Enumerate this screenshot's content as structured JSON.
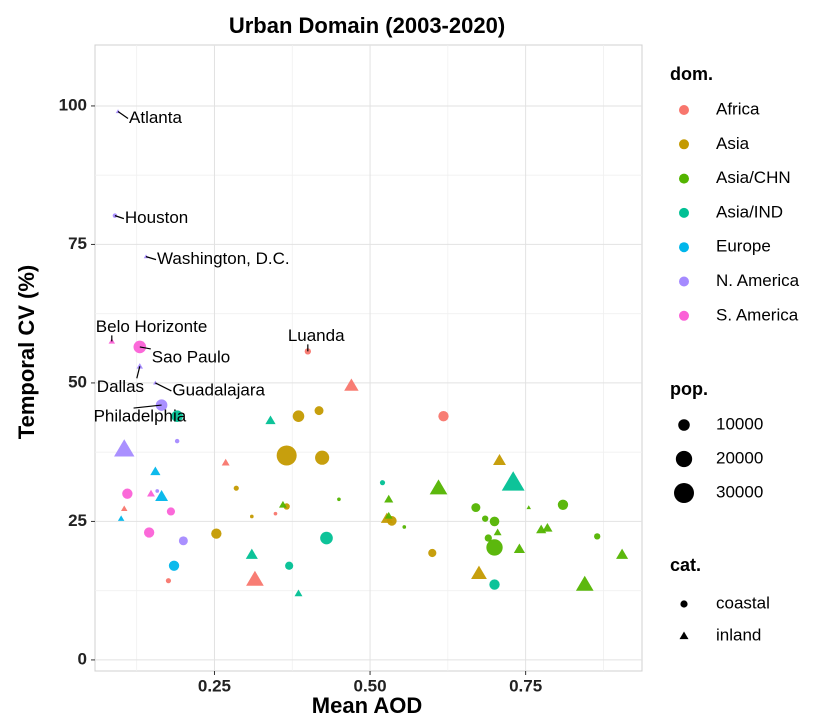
{
  "chart_data": {
    "type": "scatter",
    "title": "Urban Domain (2003-2020)",
    "xlabel": "Mean AOD",
    "ylabel": "Temporal CV (%)",
    "xlim": [
      0.058,
      0.937
    ],
    "ylim": [
      -2,
      111
    ],
    "xticks": [
      0.25,
      {
        "value": 0.5,
        "label": "0.50"
      },
      0.75
    ],
    "yticks": [
      0,
      25,
      50,
      75,
      100
    ],
    "grid": true,
    "color_legend_title": "dom.",
    "size_legend": {
      "title": "pop.",
      "values": [
        10000,
        20000,
        30000
      ]
    },
    "shape_legend": {
      "title": "cat.",
      "names": [
        "coastal",
        "inland"
      ]
    },
    "series": [
      {
        "name": "Africa",
        "color": "#F8766D",
        "x": [
          0.4,
          0.47,
          0.618,
          0.268,
          0.315,
          0.176,
          0.348,
          0.105
        ],
        "y": [
          55.7,
          49.5,
          44,
          35.6,
          14.5,
          14.3,
          26.4,
          27.3
        ],
        "size": [
          3000,
          10000,
          8000,
          3000,
          15000,
          2000,
          1000,
          2000
        ],
        "shape": [
          "coastal",
          "inland",
          "coastal",
          "inland",
          "inland",
          "coastal",
          "coastal",
          "inland"
        ],
        "labels": [
          "Luanda",
          null,
          null,
          null,
          null,
          null,
          null,
          null
        ]
      },
      {
        "name": "Asia",
        "color": "#C49A00",
        "x": [
          0.366,
          0.423,
          0.385,
          0.418,
          0.708,
          0.285,
          0.31,
          0.253,
          0.366,
          0.535,
          0.527,
          0.6,
          0.675
        ],
        "y": [
          36.9,
          36.5,
          44,
          45,
          36,
          31,
          25.9,
          22.8,
          27.7,
          25.1,
          25.5,
          19.3,
          15.6
        ],
        "size": [
          30000,
          15000,
          10000,
          6000,
          8000,
          2000,
          1000,
          8000,
          3000,
          7000,
          7000,
          5000,
          12000
        ],
        "shape": [
          "coastal",
          "coastal",
          "coastal",
          "coastal",
          "inland",
          "coastal",
          "coastal",
          "coastal",
          "coastal",
          "coastal",
          "inland",
          "coastal",
          "inland"
        ]
      },
      {
        "name": "Asia/CHN",
        "color": "#53B400",
        "x": [
          0.61,
          0.67,
          0.685,
          0.7,
          0.69,
          0.7,
          0.705,
          0.74,
          0.775,
          0.785,
          0.755,
          0.81,
          0.865,
          0.845,
          0.905,
          0.45,
          0.555,
          0.53,
          0.53,
          0.36
        ],
        "y": [
          31,
          27.5,
          25.5,
          25,
          22,
          20.3,
          23,
          20,
          23.5,
          23.8,
          27.5,
          28,
          22.3,
          13.6,
          19,
          29,
          24,
          29,
          26,
          28
        ],
        "size": [
          15000,
          6000,
          3000,
          7000,
          4000,
          20000,
          3000,
          6000,
          5000,
          5000,
          1000,
          8000,
          3000,
          15000,
          7000,
          1000,
          1000,
          4000,
          3000,
          3000
        ],
        "shape": [
          "inland",
          "coastal",
          "coastal",
          "coastal",
          "coastal",
          "coastal",
          "inland",
          "inland",
          "inland",
          "inland",
          "inland",
          "coastal",
          "coastal",
          "inland",
          "inland",
          "coastal",
          "coastal",
          "inland",
          "inland",
          "inland"
        ]
      },
      {
        "name": "Asia/IND",
        "color": "#00C094",
        "x": [
          0.73,
          0.7,
          0.43,
          0.37,
          0.31,
          0.385,
          0.34,
          0.52,
          0.19
        ],
        "y": [
          32,
          13.6,
          22,
          17,
          19,
          12,
          43.2,
          32,
          44
        ],
        "size": [
          25000,
          8000,
          12000,
          5000,
          7000,
          3000,
          5000,
          2000,
          10000
        ],
        "shape": [
          "inland",
          "coastal",
          "coastal",
          "coastal",
          "inland",
          "inland",
          "inland",
          "coastal",
          "coastal"
        ]
      },
      {
        "name": "Europe",
        "color": "#00B6EB",
        "x": [
          0.155,
          0.165,
          0.1,
          0.185
        ],
        "y": [
          34,
          29.5,
          25.5,
          17
        ],
        "size": [
          5000,
          8000,
          2000,
          8000
        ],
        "shape": [
          "inland",
          "inland",
          "inland",
          "coastal"
        ]
      },
      {
        "name": "N. America",
        "color": "#A58AFF",
        "x": [
          0.095,
          0.09,
          0.14,
          0.13,
          0.165,
          0.155,
          0.105,
          0.19,
          0.2,
          0.158
        ],
        "y": [
          99,
          80.2,
          72.8,
          53,
          46,
          50,
          38,
          39.5,
          21.5,
          30.5
        ],
        "size": [
          1000,
          1500,
          1000,
          2000,
          10000,
          1000,
          20000,
          1500,
          6000,
          1000
        ],
        "shape": [
          "inland",
          "coastal",
          "inland",
          "inland",
          "coastal",
          "inland",
          "inland",
          "coastal",
          "coastal",
          "coastal"
        ],
        "labels": [
          "Atlanta",
          "Houston",
          "Washington, D.C.",
          "Dallas",
          "Philadelphia",
          "Guadalajara",
          null,
          null,
          null,
          null
        ]
      },
      {
        "name": "S. America",
        "color": "#FB61D7",
        "x": [
          0.085,
          0.13,
          0.11,
          0.148,
          0.18,
          0.145
        ],
        "y": [
          57.5,
          56.5,
          30,
          30,
          26.8,
          23
        ],
        "size": [
          2000,
          12000,
          8000,
          3000,
          5000,
          8000
        ],
        "shape": [
          "inland",
          "coastal",
          "coastal",
          "inland",
          "coastal",
          "coastal"
        ],
        "labels": [
          "Belo Horizonte",
          "Sao Paulo",
          null,
          null,
          null,
          null
        ]
      }
    ]
  }
}
